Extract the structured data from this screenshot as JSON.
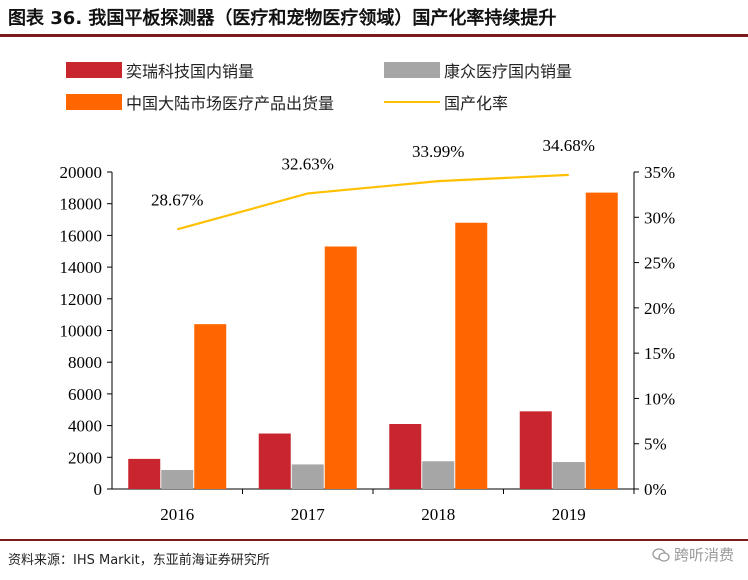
{
  "header": {
    "title": "图表 36. 我国平板探测器（医疗和宠物医疗领域）国产化率持续提升"
  },
  "chart_data": {
    "type": "bar",
    "categories": [
      "2016",
      "2017",
      "2018",
      "2019"
    ],
    "series": [
      {
        "name": "奕瑞科技国内销量",
        "kind": "bar",
        "axis": "left",
        "color": "#c8252f",
        "values": [
          1900,
          3500,
          4100,
          4900
        ]
      },
      {
        "name": "康众医疗国内销量",
        "kind": "bar",
        "axis": "left",
        "color": "#a6a6a6",
        "values": [
          1200,
          1550,
          1750,
          1700
        ]
      },
      {
        "name": "中国大陆市场医疗产品出货量",
        "kind": "bar",
        "axis": "left",
        "color": "#ff6600",
        "values": [
          10400,
          15300,
          16800,
          18700
        ]
      },
      {
        "name": "国产化率",
        "kind": "line",
        "axis": "right",
        "color": "#ffc000",
        "values": [
          28.67,
          32.63,
          33.99,
          34.68
        ],
        "labels": [
          "28.67%",
          "32.63%",
          "33.99%",
          "34.68%"
        ]
      }
    ],
    "y_left": {
      "min": 0,
      "max": 20000,
      "step": 2000,
      "ticks": [
        "0",
        "2000",
        "4000",
        "6000",
        "8000",
        "10000",
        "12000",
        "14000",
        "16000",
        "18000",
        "20000"
      ]
    },
    "y_right": {
      "min": 0,
      "max": 35,
      "step": 5,
      "ticks": [
        "0%",
        "5%",
        "10%",
        "15%",
        "20%",
        "25%",
        "30%",
        "35%"
      ]
    },
    "grid": false,
    "legend_position": "top"
  },
  "footer": {
    "source": "资料来源：IHS Markit，东亚前海证券研究所",
    "watermark": "跨听消费",
    "watermark_icon": "wechat-icon"
  }
}
